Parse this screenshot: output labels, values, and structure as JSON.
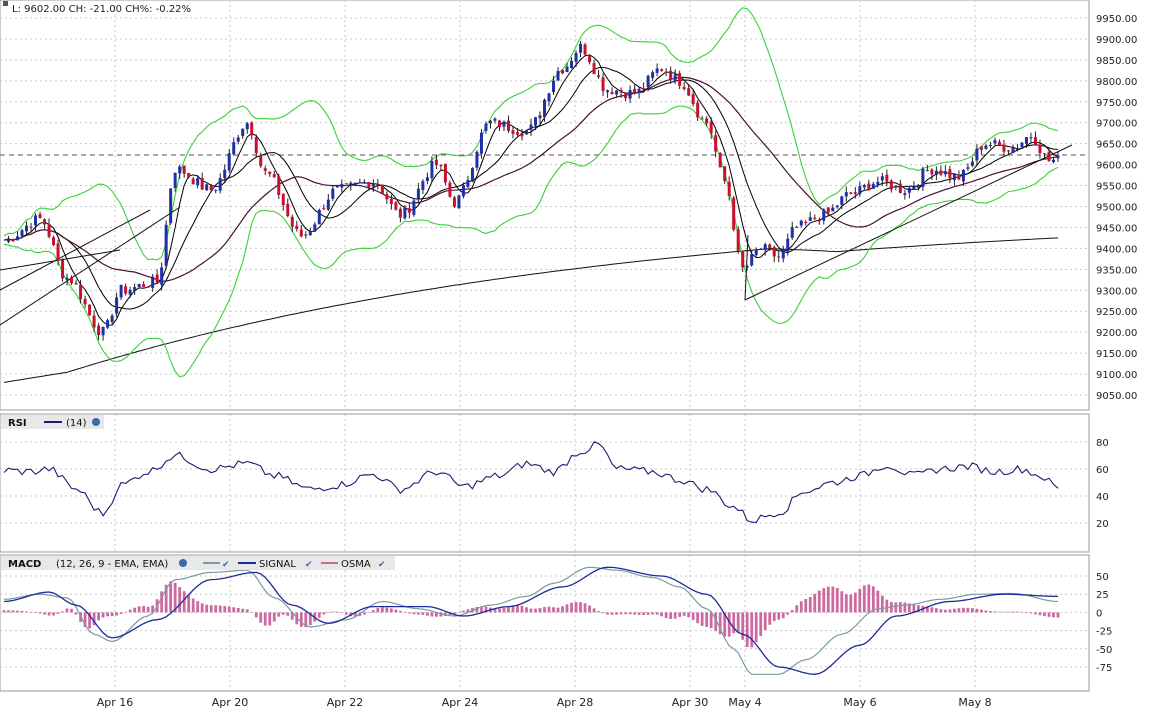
{
  "quote_header": "L: 9602.00 CH: -21.00 CH%: -0.22%",
  "price_panel": {
    "y_ticks": [
      "9950.00",
      "9900.00",
      "9850.00",
      "9800.00",
      "9750.00",
      "9700.00",
      "9650.00",
      "9600.00",
      "9550.00",
      "9500.00",
      "9450.00",
      "9400.00",
      "9350.00",
      "9300.00",
      "9250.00",
      "9200.00",
      "9150.00",
      "9100.00",
      "9050.00"
    ],
    "reference_level": 9623
  },
  "rsi_panel": {
    "label": "RSI",
    "params": "(14)",
    "y_ticks": [
      "80",
      "60",
      "40",
      "20"
    ]
  },
  "macd_panel": {
    "label": "MACD",
    "params": "(12, 26, 9 - EMA, EMA)",
    "signal_label": "SIGNAL",
    "osma_label": "OSMA",
    "y_ticks": [
      "50",
      "25",
      "0",
      "-25",
      "-50",
      "-75"
    ]
  },
  "x_axis": {
    "labels": [
      "Apr 16",
      "Apr 20",
      "Apr 22",
      "Apr 24",
      "Apr 28",
      "Apr 30",
      "May 4",
      "May 6",
      "May 8"
    ]
  },
  "colors": {
    "up_candle": "#1f2fa8",
    "down_candle": "#c8102e",
    "bollinger": "#3ad13a",
    "moving_average_dark": "#000000",
    "moving_average_purple": "#4a1030",
    "rsi_line": "#1c1c70",
    "macd_line": "#7a9aa0",
    "signal_line": "#1c2a9a",
    "osma_bars": "#cc6aa0",
    "grid": "#c8c8c8"
  },
  "chart_data": {
    "type": "candlestick-with-indicators",
    "price_range": [
      9030,
      9960
    ],
    "rsi_range": [
      0,
      100
    ],
    "macd_range": [
      -90,
      65
    ],
    "price_keypoints": [
      {
        "i": 0,
        "c": 9420
      },
      {
        "i": 8,
        "c": 9470
      },
      {
        "i": 14,
        "c": 9330
      },
      {
        "i": 22,
        "c": 9200
      },
      {
        "i": 26,
        "c": 9300
      },
      {
        "i": 34,
        "c": 9320
      },
      {
        "i": 38,
        "c": 9590
      },
      {
        "i": 46,
        "c": 9540
      },
      {
        "i": 54,
        "c": 9700
      },
      {
        "i": 58,
        "c": 9580
      },
      {
        "i": 66,
        "c": 9430
      },
      {
        "i": 74,
        "c": 9540
      },
      {
        "i": 82,
        "c": 9560
      },
      {
        "i": 88,
        "c": 9480
      },
      {
        "i": 96,
        "c": 9600
      },
      {
        "i": 100,
        "c": 9510
      },
      {
        "i": 108,
        "c": 9700
      },
      {
        "i": 116,
        "c": 9680
      },
      {
        "i": 124,
        "c": 9830
      },
      {
        "i": 128,
        "c": 9880
      },
      {
        "i": 134,
        "c": 9780
      },
      {
        "i": 140,
        "c": 9770
      },
      {
        "i": 146,
        "c": 9830
      },
      {
        "i": 150,
        "c": 9800
      },
      {
        "i": 156,
        "c": 9700
      },
      {
        "i": 160,
        "c": 9560
      },
      {
        "i": 164,
        "c": 9350
      },
      {
        "i": 168,
        "c": 9400
      },
      {
        "i": 172,
        "c": 9380
      },
      {
        "i": 176,
        "c": 9450
      },
      {
        "i": 182,
        "c": 9480
      },
      {
        "i": 188,
        "c": 9530
      },
      {
        "i": 194,
        "c": 9560
      },
      {
        "i": 200,
        "c": 9540
      },
      {
        "i": 206,
        "c": 9590
      },
      {
        "i": 212,
        "c": 9570
      },
      {
        "i": 218,
        "c": 9650
      },
      {
        "i": 224,
        "c": 9640
      },
      {
        "i": 228,
        "c": 9670
      },
      {
        "i": 232,
        "c": 9610
      }
    ],
    "rsi_keypoints": [
      {
        "i": 0,
        "v": 59
      },
      {
        "i": 6,
        "v": 58
      },
      {
        "i": 10,
        "v": 60
      },
      {
        "i": 16,
        "v": 45
      },
      {
        "i": 22,
        "v": 27
      },
      {
        "i": 26,
        "v": 48
      },
      {
        "i": 32,
        "v": 58
      },
      {
        "i": 38,
        "v": 70
      },
      {
        "i": 46,
        "v": 60
      },
      {
        "i": 54,
        "v": 64
      },
      {
        "i": 60,
        "v": 55
      },
      {
        "i": 68,
        "v": 45
      },
      {
        "i": 74,
        "v": 48
      },
      {
        "i": 82,
        "v": 56
      },
      {
        "i": 88,
        "v": 45
      },
      {
        "i": 96,
        "v": 58
      },
      {
        "i": 102,
        "v": 47
      },
      {
        "i": 110,
        "v": 55
      },
      {
        "i": 116,
        "v": 64
      },
      {
        "i": 122,
        "v": 58
      },
      {
        "i": 128,
        "v": 73
      },
      {
        "i": 132,
        "v": 78
      },
      {
        "i": 136,
        "v": 60
      },
      {
        "i": 144,
        "v": 58
      },
      {
        "i": 150,
        "v": 52
      },
      {
        "i": 156,
        "v": 45
      },
      {
        "i": 162,
        "v": 32
      },
      {
        "i": 166,
        "v": 22
      },
      {
        "i": 172,
        "v": 28
      },
      {
        "i": 178,
        "v": 44
      },
      {
        "i": 184,
        "v": 50
      },
      {
        "i": 190,
        "v": 55
      },
      {
        "i": 196,
        "v": 63
      },
      {
        "i": 202,
        "v": 55
      },
      {
        "i": 208,
        "v": 60
      },
      {
        "i": 214,
        "v": 62
      },
      {
        "i": 220,
        "v": 58
      },
      {
        "i": 226,
        "v": 60
      },
      {
        "i": 230,
        "v": 55
      },
      {
        "i": 234,
        "v": 46
      }
    ],
    "macd_keypoints": [
      {
        "i": 0,
        "v": 18
      },
      {
        "i": 8,
        "v": 25
      },
      {
        "i": 14,
        "v": 20
      },
      {
        "i": 20,
        "v": -30
      },
      {
        "i": 24,
        "v": -40
      },
      {
        "i": 32,
        "v": -5
      },
      {
        "i": 38,
        "v": 45
      },
      {
        "i": 46,
        "v": 55
      },
      {
        "i": 54,
        "v": 58
      },
      {
        "i": 60,
        "v": 20
      },
      {
        "i": 68,
        "v": -20
      },
      {
        "i": 76,
        "v": -10
      },
      {
        "i": 84,
        "v": 15
      },
      {
        "i": 92,
        "v": 5
      },
      {
        "i": 100,
        "v": -5
      },
      {
        "i": 108,
        "v": 10
      },
      {
        "i": 116,
        "v": 22
      },
      {
        "i": 122,
        "v": 40
      },
      {
        "i": 130,
        "v": 62
      },
      {
        "i": 136,
        "v": 58
      },
      {
        "i": 144,
        "v": 48
      },
      {
        "i": 150,
        "v": 35
      },
      {
        "i": 156,
        "v": 5
      },
      {
        "i": 162,
        "v": -50
      },
      {
        "i": 166,
        "v": -85
      },
      {
        "i": 172,
        "v": -85
      },
      {
        "i": 178,
        "v": -65
      },
      {
        "i": 186,
        "v": -30
      },
      {
        "i": 194,
        "v": 5
      },
      {
        "i": 200,
        "v": 10
      },
      {
        "i": 208,
        "v": 18
      },
      {
        "i": 216,
        "v": 25
      },
      {
        "i": 224,
        "v": 26
      },
      {
        "i": 234,
        "v": 15
      }
    ],
    "signal_keypoints": [
      {
        "i": 0,
        "v": 15
      },
      {
        "i": 10,
        "v": 28
      },
      {
        "i": 16,
        "v": 10
      },
      {
        "i": 24,
        "v": -35
      },
      {
        "i": 34,
        "v": -10
      },
      {
        "i": 46,
        "v": 45
      },
      {
        "i": 56,
        "v": 55
      },
      {
        "i": 64,
        "v": 10
      },
      {
        "i": 72,
        "v": -15
      },
      {
        "i": 82,
        "v": 8
      },
      {
        "i": 94,
        "v": 8
      },
      {
        "i": 102,
        "v": -5
      },
      {
        "i": 112,
        "v": 8
      },
      {
        "i": 124,
        "v": 35
      },
      {
        "i": 134,
        "v": 62
      },
      {
        "i": 146,
        "v": 50
      },
      {
        "i": 156,
        "v": 25
      },
      {
        "i": 164,
        "v": -30
      },
      {
        "i": 172,
        "v": -75
      },
      {
        "i": 180,
        "v": -85
      },
      {
        "i": 190,
        "v": -45
      },
      {
        "i": 198,
        "v": -5
      },
      {
        "i": 210,
        "v": 15
      },
      {
        "i": 222,
        "v": 25
      },
      {
        "i": 234,
        "v": 22
      }
    ]
  }
}
